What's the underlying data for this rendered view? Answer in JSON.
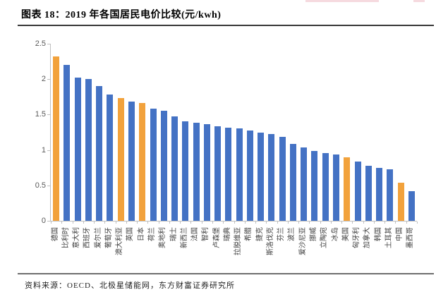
{
  "figure": {
    "title": "图表 18：2019 年各国居民电价比较(元/kwh)",
    "source": "资料来源：OECD、北极星储能网，东方财富证券研究所"
  },
  "chart_data": {
    "type": "bar",
    "title": "2019 年各国居民电价比较(元/kwh)",
    "unit": "元/kwh",
    "categories": [
      "德国",
      "比利时",
      "意大利",
      "西班牙",
      "爱尔兰",
      "葡萄牙",
      "澳大利亚",
      "英国",
      "日本",
      "荷兰",
      "奥地利",
      "瑞士",
      "新西兰",
      "法国",
      "智利",
      "卢森堡",
      "瑞典",
      "拉脱维亚",
      "希腊",
      "捷克",
      "斯洛伐克",
      "芬兰",
      "波兰",
      "爱沙尼亚",
      "挪威",
      "立陶宛",
      "冰岛",
      "美国",
      "匈牙利",
      "加拿大",
      "韩国",
      "土耳其",
      "中国",
      "墨西哥"
    ],
    "values": [
      2.32,
      2.2,
      2.02,
      2.0,
      1.9,
      1.78,
      1.73,
      1.68,
      1.66,
      1.58,
      1.55,
      1.47,
      1.4,
      1.38,
      1.36,
      1.33,
      1.31,
      1.3,
      1.28,
      1.25,
      1.23,
      1.19,
      1.09,
      1.04,
      0.99,
      0.96,
      0.94,
      0.9,
      0.84,
      0.78,
      0.75,
      0.73,
      0.54,
      0.42
    ],
    "xlabel": "",
    "ylabel": "",
    "ylim": [
      0,
      2.5
    ],
    "yticks": [
      0,
      0.5,
      1,
      1.5,
      2,
      2.5
    ],
    "ytick_labels": [
      "0",
      "0.5",
      "1",
      "1.5",
      "2",
      "2.5"
    ],
    "grid": false,
    "legend": "none",
    "bar_color": "#4472C4",
    "highlight_color": "#F2A23C",
    "highlighted_indices": [
      0,
      6,
      8,
      27,
      32
    ],
    "highlighted_categories": [
      "德国",
      "澳大利亚",
      "日本",
      "美国",
      "中国"
    ]
  }
}
